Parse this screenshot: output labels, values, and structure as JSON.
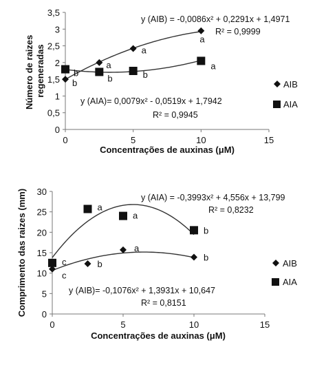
{
  "chart_data": [
    {
      "type": "scatter",
      "title": "",
      "xlabel_main": "Concentrações de auxinas (",
      "xlabel_unit": "μM",
      "xlabel_close": ")",
      "ylabel_lines": [
        "Número de raizes",
        "regeneradas"
      ],
      "xlim": [
        0,
        15
      ],
      "ylim": [
        0,
        3.5
      ],
      "xticks": [
        0,
        5,
        10,
        15
      ],
      "yticks": [
        "0",
        "0,5",
        "1",
        "1,5",
        "2",
        "2,5",
        "3",
        "3,5"
      ],
      "ytick_values": [
        0,
        0.5,
        1,
        1.5,
        2,
        2.5,
        3,
        3.5
      ],
      "grid": false,
      "legend_position": "right",
      "series": [
        {
          "name": "AIB",
          "marker": "diamond",
          "x": [
            0,
            2.5,
            5,
            10
          ],
          "y": [
            1.5,
            2.0,
            2.42,
            2.95
          ],
          "letters": [
            "b",
            "a",
            "a",
            "a"
          ],
          "fit": [
            -0.0086,
            0.2291,
            1.4971
          ],
          "equation": "y (AIB) = -0,0086x² + 0,2291x + 1,4971",
          "r2": "R² = 0,9999"
        },
        {
          "name": "AIA",
          "marker": "square",
          "x": [
            0,
            2.5,
            5,
            10
          ],
          "y": [
            1.8,
            1.72,
            1.75,
            2.05
          ],
          "letters": [
            "b",
            "b",
            "b",
            "a"
          ],
          "fit": [
            0.0079,
            -0.0519,
            1.7942
          ],
          "equation": "y (AIA)= 0,0079x² - 0,0519x + 1,7942",
          "r2": "R² = 0,9945"
        }
      ]
    },
    {
      "type": "scatter",
      "title": "",
      "xlabel_main": "Concentrações de auxinas (",
      "xlabel_unit": "μM",
      "xlabel_close": ")",
      "ylabel_lines": [
        "Comprimento das raizes (mm)"
      ],
      "xlim": [
        0,
        15
      ],
      "ylim": [
        0,
        30
      ],
      "xticks": [
        0,
        5,
        10,
        15
      ],
      "yticks": [
        "0",
        "5",
        "10",
        "15",
        "20",
        "25",
        "30"
      ],
      "ytick_values": [
        0,
        5,
        10,
        15,
        20,
        25,
        30
      ],
      "grid": false,
      "legend_position": "right",
      "series": [
        {
          "name": "AIB",
          "marker": "diamond",
          "x": [
            0,
            2.5,
            5,
            10
          ],
          "y": [
            11.0,
            12.3,
            15.7,
            13.9
          ],
          "letters": [
            "c",
            "b",
            "a",
            "b"
          ],
          "fit": [
            -0.1076,
            1.3931,
            10.647
          ],
          "equation": "y (AIB)= -0,1076x² + 1,3931x + 10,647",
          "r2": "R² = 0,8151"
        },
        {
          "name": "AIA",
          "marker": "square",
          "x": [
            0,
            2.5,
            5,
            10
          ],
          "y": [
            12.5,
            25.7,
            24.0,
            20.5
          ],
          "letters": [
            "c",
            "a",
            "a",
            "b"
          ],
          "fit": [
            -0.3993,
            4.556,
            13.799
          ],
          "equation": "y (AIA) = -0,3993x² + 4,556x + 13,799",
          "r2": "R² = 0,8232"
        }
      ]
    }
  ]
}
